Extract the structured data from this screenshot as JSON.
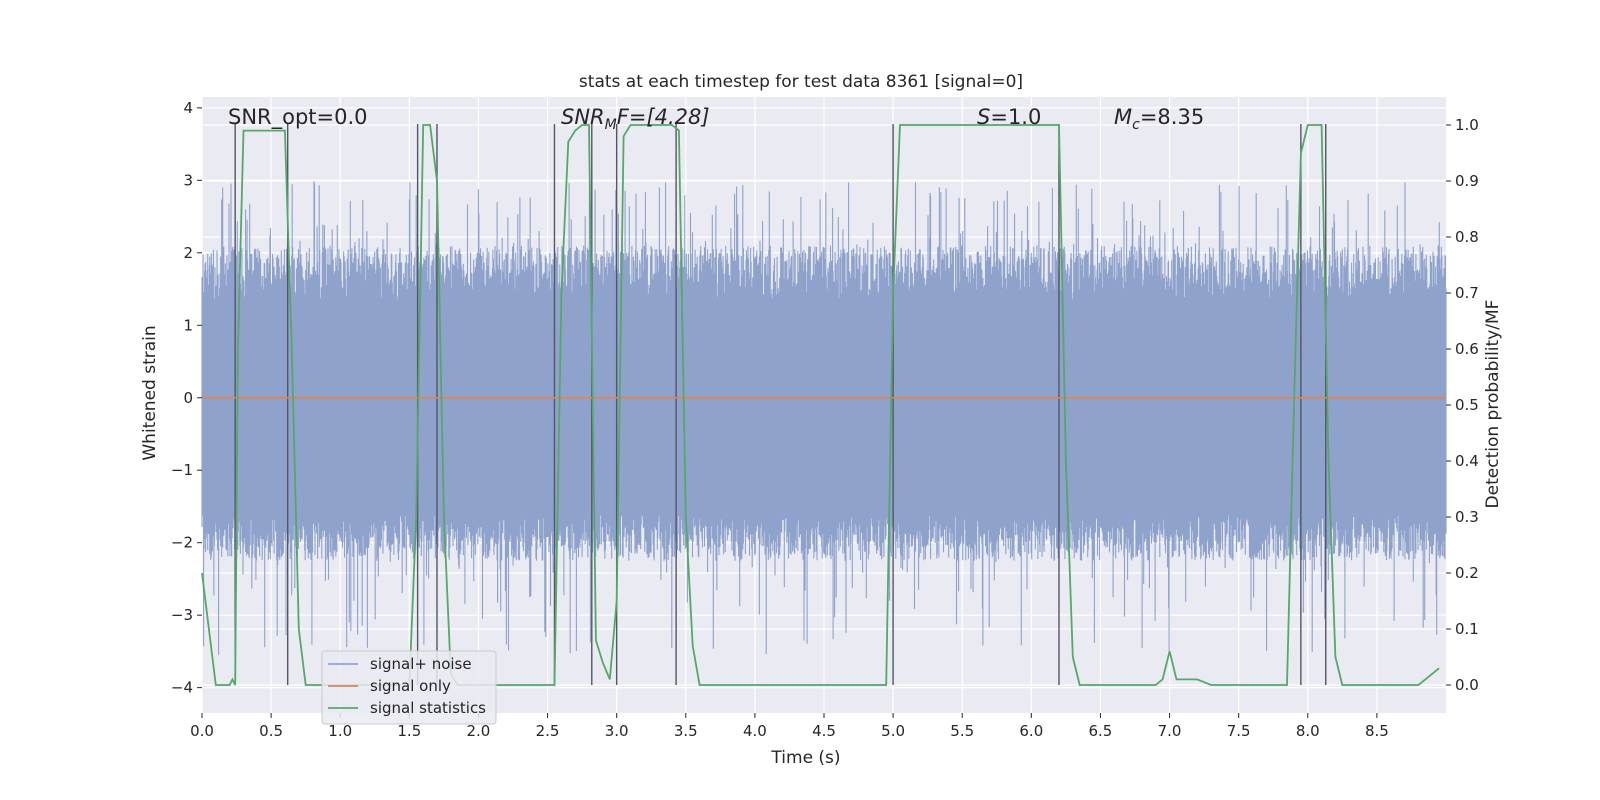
{
  "chart_data": {
    "type": "line",
    "title": "stats at each timestep for test data 8361 [signal=0]",
    "xlabel": "Time (s)",
    "ylabel": "Whitened strain",
    "ylabel_right": "Detection probability/MF",
    "xlim": [
      0.0,
      9.0
    ],
    "ylim": [
      -4.35,
      4.15
    ],
    "ylim_right": [
      -0.05,
      1.05
    ],
    "x_ticks": [
      0.0,
      0.5,
      1.0,
      1.5,
      2.0,
      2.5,
      3.0,
      3.5,
      4.0,
      4.5,
      5.0,
      5.5,
      6.0,
      6.5,
      7.0,
      7.5,
      8.0,
      8.5
    ],
    "x_tick_labels": [
      "0.0",
      "0.5",
      "1.0",
      "1.5",
      "2.0",
      "2.5",
      "3.0",
      "3.5",
      "4.0",
      "4.5",
      "5.0",
      "5.5",
      "6.0",
      "6.5",
      "7.0",
      "7.5",
      "8.0",
      "8.5"
    ],
    "y_ticks": [
      4,
      3,
      2,
      1,
      0,
      -1,
      -2,
      -3,
      -4
    ],
    "y_tick_labels": [
      "4",
      "3",
      "2",
      "1",
      "0",
      "−1",
      "−2",
      "−3",
      "−4"
    ],
    "y_right_ticks": [
      1.0,
      0.9,
      0.8,
      0.7,
      0.6,
      0.5,
      0.4,
      0.3,
      0.2,
      0.1,
      0.0
    ],
    "y_right_tick_labels": [
      "1.0",
      "0.9",
      "0.8",
      "0.7",
      "0.6",
      "0.5",
      "0.4",
      "0.3",
      "0.2",
      "0.1",
      "0.0"
    ],
    "grid": true,
    "legend_position": "lower-left",
    "annotations": {
      "snr_opt": "SNR_opt=0.0",
      "snr_mf_main": "SNR",
      "snr_mf_sub": "M",
      "snr_mf_rest": "F=[4.28]",
      "s_sym": "S",
      "s_rest": "=1.0",
      "mc_sym": "M",
      "mc_sub": "c",
      "mc_rest": "=8.35"
    },
    "series": [
      {
        "name": "signal+ noise",
        "color": "#8ea2cc",
        "style": "noise band",
        "envelope": {
          "typical_range": [
            -1.7,
            2.0
          ],
          "peak_max": 3.0,
          "peak_min": -3.55
        }
      },
      {
        "name": "signal only",
        "color": "#dd8452",
        "x": [
          0.0,
          9.0
        ],
        "y": [
          0.0,
          0.0
        ]
      },
      {
        "name": "signal statistics",
        "color": "#55a868",
        "axis": "right",
        "x": [
          0.0,
          0.05,
          0.1,
          0.2,
          0.22,
          0.24,
          0.26,
          0.3,
          0.4,
          0.5,
          0.55,
          0.6,
          0.65,
          0.7,
          0.75,
          0.8,
          1.0,
          1.2,
          1.4,
          1.5,
          1.55,
          1.6,
          1.65,
          1.7,
          1.75,
          1.8,
          1.85,
          2.0,
          2.2,
          2.4,
          2.5,
          2.55,
          2.6,
          2.65,
          2.7,
          2.75,
          2.8,
          2.85,
          2.9,
          2.95,
          3.0,
          3.05,
          3.1,
          3.2,
          3.3,
          3.35,
          3.4,
          3.45,
          3.5,
          3.55,
          3.6,
          3.7,
          3.8,
          4.0,
          4.5,
          4.9,
          4.95,
          5.0,
          5.05,
          5.1,
          5.3,
          5.5,
          6.0,
          6.15,
          6.2,
          6.25,
          6.3,
          6.35,
          6.6,
          6.9,
          6.95,
          7.0,
          7.05,
          7.1,
          7.2,
          7.3,
          7.5,
          7.85,
          7.9,
          7.95,
          8.0,
          8.05,
          8.1,
          8.15,
          8.2,
          8.25,
          8.3,
          8.5,
          8.7,
          8.8,
          8.85,
          8.9,
          8.95
        ],
        "y": [
          0.2,
          0.1,
          0.0,
          0.0,
          0.01,
          0.0,
          0.6,
          0.99,
          0.99,
          0.99,
          0.99,
          0.99,
          0.6,
          0.1,
          0.0,
          0.0,
          0.0,
          0.0,
          0.0,
          0.0,
          0.3,
          1.0,
          1.0,
          0.9,
          0.3,
          0.02,
          0.0,
          0.0,
          0.0,
          0.0,
          0.0,
          0.0,
          0.7,
          0.97,
          0.99,
          1.0,
          1.0,
          0.08,
          0.04,
          0.01,
          0.15,
          0.98,
          1.0,
          1.0,
          1.0,
          1.0,
          1.0,
          0.99,
          0.3,
          0.07,
          0.0,
          0.0,
          0.0,
          0.0,
          0.0,
          0.0,
          0.0,
          0.7,
          1.0,
          1.0,
          1.0,
          1.0,
          1.0,
          1.0,
          1.0,
          0.4,
          0.05,
          0.0,
          0.0,
          0.0,
          0.01,
          0.06,
          0.01,
          0.01,
          0.01,
          0.0,
          0.0,
          0.0,
          0.5,
          0.95,
          1.0,
          1.0,
          1.0,
          0.4,
          0.05,
          0.0,
          0.0,
          0.0,
          0.0,
          0.0,
          0.01,
          0.02,
          0.03
        ]
      }
    ],
    "vertical_markers": [
      0.24,
      0.62,
      1.56,
      1.7,
      2.55,
      2.82,
      3.0,
      3.43,
      5.0,
      6.2,
      7.95,
      8.13
    ]
  }
}
